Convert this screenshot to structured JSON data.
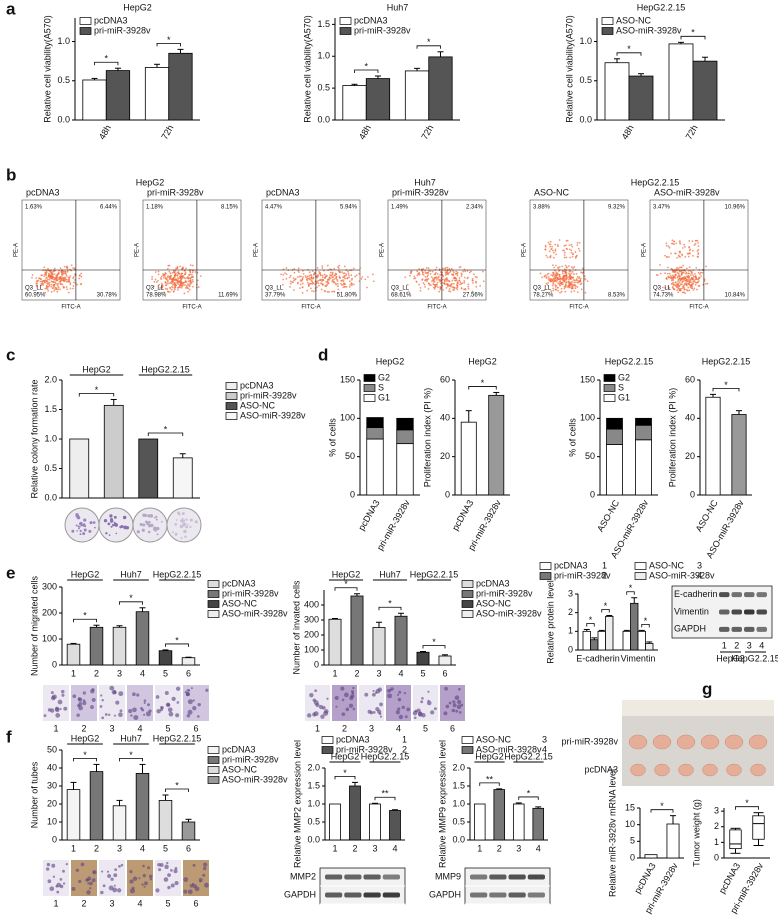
{
  "panel_labels": [
    "a",
    "b",
    "c",
    "d",
    "e",
    "f",
    "g"
  ],
  "chart_data": [
    {
      "type": "bar",
      "title": "HepG2",
      "ylabel": "Relative cell viability(A570)",
      "categories": [
        "48h",
        "72h"
      ],
      "series": [
        {
          "name": "pcDNA3",
          "color": "#ffffff",
          "values": [
            0.51,
            0.67
          ],
          "errors": [
            0.02,
            0.04
          ]
        },
        {
          "name": "pri-miR-3928v",
          "color": "#555555",
          "values": [
            0.63,
            0.85
          ],
          "errors": [
            0.03,
            0.05
          ]
        }
      ],
      "ylim": [
        0,
        1.3
      ],
      "yticks": [
        {
          "value": 0,
          "label": "0.0"
        },
        0.5,
        {
          "value": 1,
          "label": "1.0"
        }
      ],
      "significance": [
        "*",
        "*"
      ]
    },
    {
      "type": "bar",
      "title": "Huh7",
      "ylabel": "Relative cell viability(A570)",
      "categories": [
        "48h",
        "72h"
      ],
      "series": [
        {
          "name": "pcDNA3",
          "color": "#ffffff",
          "values": [
            0.54,
            0.77
          ],
          "errors": [
            0.02,
            0.04
          ]
        },
        {
          "name": "pri-miR-3928v",
          "color": "#555555",
          "values": [
            0.65,
            0.99
          ],
          "errors": [
            0.04,
            0.08
          ]
        }
      ],
      "ylim": [
        0,
        1.6
      ],
      "yticks": [
        {
          "value": 0,
          "label": "0.0"
        },
        0.5,
        {
          "value": 1,
          "label": "1.0"
        },
        1.5
      ],
      "significance": [
        "*",
        "*"
      ]
    },
    {
      "type": "bar",
      "title": "HepG2.2.15",
      "ylabel": "Relative cell viability(A570)",
      "categories": [
        "48h",
        "72h"
      ],
      "series": [
        {
          "name": "ASO-NC",
          "color": "#ffffff",
          "values": [
            0.73,
            0.97
          ],
          "errors": [
            0.05,
            0.02
          ]
        },
        {
          "name": "ASO-miR-3928v",
          "color": "#555555",
          "values": [
            0.56,
            0.75
          ],
          "errors": [
            0.03,
            0.05
          ]
        }
      ],
      "ylim": [
        0,
        1.3
      ],
      "yticks": [
        {
          "value": 0,
          "label": "0.0"
        },
        0.5,
        {
          "value": 1,
          "label": "1.0"
        }
      ],
      "significance": [
        "*",
        "*"
      ]
    },
    {
      "type": "bar",
      "ylabel": "Relative colony formation rate",
      "values": [
        1.0,
        1.57,
        1.0,
        0.68
      ],
      "errors": [
        0,
        0.1,
        0,
        0.07
      ],
      "colors": [
        "#eeeeee",
        "#cccccc",
        "#555555",
        "#f6f6f6"
      ],
      "legend": [
        {
          "name": "pcDNA3",
          "color": "#eeeeee"
        },
        {
          "name": "pri-miR-3928v",
          "color": "#cccccc"
        },
        {
          "name": "ASO-NC",
          "color": "#555555"
        },
        {
          "name": "ASO-miR-3928v",
          "color": "#f6f6f6"
        }
      ],
      "group_labels": [
        "HepG2",
        "HepG2.2.15"
      ],
      "ylim": [
        0,
        2.0
      ],
      "yticks": [
        {
          "value": 0,
          "label": "0.0"
        },
        0.5,
        {
          "value": 1,
          "label": "1.0"
        },
        1.5,
        {
          "value": 2,
          "label": "2.0"
        }
      ],
      "significance": [
        "*",
        "*"
      ]
    },
    {
      "type": "stacked_bar",
      "title": "HepG2",
      "ylabel": "% of cells",
      "categories": [
        "pcDNA3",
        "pri-miR-3928v"
      ],
      "series": [
        {
          "name": "G1",
          "color": "#ffffff",
          "values": [
            73,
            67
          ]
        },
        {
          "name": "S",
          "color": "#888888",
          "values": [
            15,
            18
          ]
        },
        {
          "name": "G2",
          "color": "#000000",
          "values": [
            13,
            15
          ]
        }
      ],
      "ylim": [
        0,
        150
      ],
      "yticks": [
        0,
        50,
        100,
        150
      ]
    },
    {
      "type": "bar",
      "title": "HepG2",
      "ylabel": "Proliferation index (PI %)",
      "categories": [
        "pcDNA3",
        "pri-miR-3928v"
      ],
      "values": [
        38,
        52
      ],
      "errors": [
        6,
        1.5
      ],
      "colors": [
        "#ffffff",
        "#999999"
      ],
      "ylim": [
        0,
        60
      ],
      "yticks": [
        0,
        20,
        40,
        60
      ],
      "significance": [
        "*"
      ]
    },
    {
      "type": "stacked_bar",
      "title": "HepG2.2.15",
      "ylabel": "% of cells",
      "categories": [
        "ASO-NC",
        "ASO-miR-3928v"
      ],
      "series": [
        {
          "name": "G1",
          "color": "#ffffff",
          "values": [
            66,
            72
          ]
        },
        {
          "name": "S",
          "color": "#888888",
          "values": [
            20,
            19
          ]
        },
        {
          "name": "G2",
          "color": "#000000",
          "values": [
            14,
            9
          ]
        }
      ],
      "ylim": [
        0,
        150
      ],
      "yticks": [
        0,
        50,
        100,
        150
      ]
    },
    {
      "type": "bar",
      "title": "HepG2.2.15",
      "ylabel": "Proliferation index (PI %)",
      "categories": [
        "ASO-NC",
        "ASO-miR-3928v"
      ],
      "values": [
        51,
        42
      ],
      "errors": [
        1.5,
        2
      ],
      "colors": [
        "#ffffff",
        "#999999"
      ],
      "ylim": [
        0,
        60
      ],
      "yticks": [
        0,
        20,
        40,
        60
      ],
      "significance": [
        "*"
      ]
    },
    {
      "type": "bar",
      "ylabel": "Number of migrated cells",
      "categories": [
        "1",
        "2",
        "3",
        "4",
        "5",
        "6"
      ],
      "values": [
        80,
        145,
        145,
        205,
        55,
        28
      ],
      "errors": [
        3,
        8,
        6,
        15,
        3,
        2
      ],
      "colors": [
        "#dddddd",
        "#777777",
        "#dddddd",
        "#777777",
        "#444444",
        "#eeeeee"
      ],
      "legend": [
        {
          "name": "pcDNA3",
          "color": "#dddddd"
        },
        {
          "name": "pri-miR-3928v",
          "color": "#777777"
        },
        {
          "name": "ASO-NC",
          "color": "#444444"
        },
        {
          "name": "ASO-miR-3928v",
          "color": "#eeeeee"
        }
      ],
      "group_labels": [
        "HepG2",
        "Huh7",
        "HepG2.2.15"
      ],
      "ylim": [
        0,
        300
      ],
      "yticks": [
        0,
        100,
        200,
        300
      ],
      "significance": [
        "*",
        "*",
        "*"
      ]
    },
    {
      "type": "bar",
      "ylabel": "Number of invated cells",
      "categories": [
        "1",
        "2",
        "3",
        "4",
        "5",
        "6"
      ],
      "values": [
        305,
        460,
        250,
        325,
        85,
        60
      ],
      "errors": [
        5,
        15,
        35,
        20,
        5,
        8
      ],
      "colors": [
        "#dddddd",
        "#777777",
        "#dddddd",
        "#777777",
        "#444444",
        "#eeeeee"
      ],
      "legend": [
        {
          "name": "pcDNA3",
          "color": "#dddddd"
        },
        {
          "name": "pri-miR-3928v",
          "color": "#777777"
        },
        {
          "name": "ASO-NC",
          "color": "#444444"
        },
        {
          "name": "ASO-miR-3928v",
          "color": "#eeeeee"
        }
      ],
      "group_labels": [
        "HepG2",
        "Huh7",
        "HepG2.2.15"
      ],
      "ylim": [
        0,
        500
      ],
      "yticks": [
        0,
        100,
        200,
        300,
        400
      ],
      "significance": [
        "*",
        "*",
        "*"
      ]
    },
    {
      "type": "bar",
      "ylabel": "Relative protein level",
      "categories": [
        "E-cadherin",
        "Vimentin"
      ],
      "series": [
        {
          "name": "pcDNA3",
          "color": "#ffffff",
          "values": [
            1.0,
            1.0
          ],
          "errors": [
            0.1,
            0.05
          ]
        },
        {
          "name": "pri-miR-3928v",
          "color": "#777777",
          "values": [
            0.55,
            2.5
          ],
          "errors": [
            0.1,
            0.3
          ]
        },
        {
          "name": "ASO-NC",
          "color": "#ffffff",
          "values": [
            1.0,
            1.0
          ],
          "errors": [
            0.05,
            0.05
          ]
        },
        {
          "name": "ASO-miR-3928v",
          "color": "#eeeeee",
          "values": [
            1.8,
            0.35
          ],
          "errors": [
            0.05,
            0.08
          ]
        }
      ],
      "legend_numbers": [
        "1",
        "2",
        "3",
        "4"
      ],
      "ylim": [
        0,
        3
      ],
      "yticks": [
        0,
        1,
        2,
        3
      ],
      "significance": [
        "*",
        "*",
        "*",
        "*"
      ],
      "blot": {
        "rows": [
          "E-cadherin",
          "Vimentin",
          "GAPDH"
        ],
        "lanes": [
          "1",
          "2",
          "3",
          "4"
        ],
        "groups": [
          "HepG2",
          "HepG2.2.15"
        ]
      }
    },
    {
      "type": "bar",
      "ylabel": "Number of tubes",
      "categories": [
        "1",
        "2",
        "3",
        "4",
        "5",
        "6"
      ],
      "values": [
        28,
        38,
        19,
        37,
        22,
        10
      ],
      "errors": [
        4,
        4,
        3,
        5,
        3,
        1.5
      ],
      "colors": [
        "#f4f4f4",
        "#777777",
        "#f4f4f4",
        "#777777",
        "#dddddd",
        "#999999"
      ],
      "legend": [
        {
          "name": "pcDNA3",
          "color": "#f4f4f4"
        },
        {
          "name": "pri-miR-3928v",
          "color": "#777777"
        },
        {
          "name": "ASO-NC",
          "color": "#dddddd"
        },
        {
          "name": "ASO-miR-3928v",
          "color": "#999999"
        }
      ],
      "group_labels": [
        "HepG2",
        "Huh7",
        "HepG2.2.15"
      ],
      "ylim": [
        0,
        50
      ],
      "yticks": [
        0,
        10,
        20,
        30,
        40,
        50
      ],
      "significance": [
        "*",
        "*",
        "*"
      ]
    },
    {
      "type": "bar",
      "ylabel": "Relative MMP2 expression level",
      "categories": [
        "1",
        "2",
        "3",
        "4"
      ],
      "values": [
        1.0,
        1.5,
        1.0,
        0.82
      ],
      "errors": [
        0,
        0.1,
        0.02,
        0.02
      ],
      "colors": [
        "#ffffff",
        "#555555",
        "#ffffff",
        "#555555"
      ],
      "legend": [
        {
          "name": "pcDNA3",
          "color": "#ffffff"
        },
        {
          "name": "pri-miR-3928v",
          "color": "#555555"
        }
      ],
      "legend_numbers": [
        "1",
        "2"
      ],
      "group_labels": [
        "HepG2",
        "HepG2.2.15"
      ],
      "ylim": [
        0,
        2.0
      ],
      "yticks": [
        {
          "value": 0,
          "label": "0.0"
        },
        0.5,
        {
          "value": 1,
          "label": "1.0"
        },
        1.5,
        {
          "value": 2,
          "label": "2.0"
        }
      ],
      "significance": [
        "*",
        "**"
      ],
      "blot": {
        "rows": [
          "MMP2",
          "GAPDH"
        ]
      }
    },
    {
      "type": "bar",
      "ylabel": "Relative MMP9 expression level",
      "categories": [
        "1",
        "2",
        "3",
        "4"
      ],
      "values": [
        1.0,
        1.4,
        1.0,
        0.88
      ],
      "errors": [
        0,
        0.02,
        0.03,
        0.04
      ],
      "colors": [
        "#ffffff",
        "#777777",
        "#ffffff",
        "#777777"
      ],
      "legend": [
        {
          "name": "ASO-NC",
          "color": "#ffffff"
        },
        {
          "name": "ASO-miR-3928v",
          "color": "#777777"
        }
      ],
      "legend_numbers": [
        "3",
        "4"
      ],
      "group_labels": [
        "HepG2",
        "HepG2.2.15"
      ],
      "ylim": [
        0,
        2.0
      ],
      "yticks": [
        {
          "value": 0,
          "label": "0.0"
        },
        0.5,
        {
          "value": 1,
          "label": "1.0"
        },
        1.5,
        {
          "value": 2,
          "label": "2.0"
        }
      ],
      "significance": [
        "**",
        "*"
      ],
      "blot": {
        "rows": [
          "MMP9",
          "GAPDH"
        ]
      }
    },
    {
      "type": "bar",
      "ylabel": "Relative miR-3928v mRNA level",
      "categories": [
        "pcDNA3",
        "pri-miR-3928v"
      ],
      "values": [
        1.0,
        10.2
      ],
      "errors": [
        0,
        2.5
      ],
      "colors": [
        "#ffffff",
        "#ffffff"
      ],
      "ylim": [
        0,
        15
      ],
      "yticks": [
        0,
        5,
        10,
        15
      ],
      "significance": [
        "*"
      ]
    },
    {
      "type": "box",
      "ylabel": "Tumor weight (g)",
      "categories": [
        "pcDNA3",
        "pri-miR-3928v"
      ],
      "boxes": [
        {
          "min": 0.3,
          "q1": 0.6,
          "median": 0.9,
          "q3": 1.8,
          "max": 1.9
        },
        {
          "min": 0.8,
          "q1": 1.2,
          "median": 2.2,
          "q3": 2.7,
          "max": 2.9
        }
      ],
      "ylim": [
        0,
        3.2
      ],
      "yticks": [
        0,
        1,
        2,
        3
      ],
      "significance": [
        "*"
      ]
    }
  ],
  "flow_cytometry": {
    "groups": [
      "HepG2",
      "Huh7",
      "HepG2.2.15"
    ],
    "x_axis": "FITC-A",
    "y_axis": "PE-A",
    "gate_label": "Q3_LL",
    "plots": [
      {
        "name": "pcDNA3",
        "ul": "1.63%",
        "ur": "6.44%",
        "ll": "60.95%",
        "lr": "30.78%"
      },
      {
        "name": "pri-miR-3928v",
        "ul": "1.18%",
        "ur": "8.15%",
        "ll": "78.98%",
        "lr": "11.69%"
      },
      {
        "name": "pcDNA3",
        "ul": "4.47%",
        "ur": "5.94%",
        "ll": "37.79%",
        "lr": "51.80%"
      },
      {
        "name": "pri-miR-3928v",
        "ul": "1.49%",
        "ur": "2.34%",
        "ll": "68.61%",
        "lr": "27.56%"
      },
      {
        "name": "ASO-NC",
        "ul": "3.88%",
        "ur": "9.32%",
        "ll": "78.27%",
        "lr": "8.53%"
      },
      {
        "name": "ASO-miR-3928v",
        "ul": "3.47%",
        "ur": "10.96%",
        "ll": "74.73%",
        "lr": "10.84%"
      }
    ]
  },
  "tumor_photo": {
    "rows": [
      "pri-miR-3928v",
      "pcDNA3"
    ]
  }
}
